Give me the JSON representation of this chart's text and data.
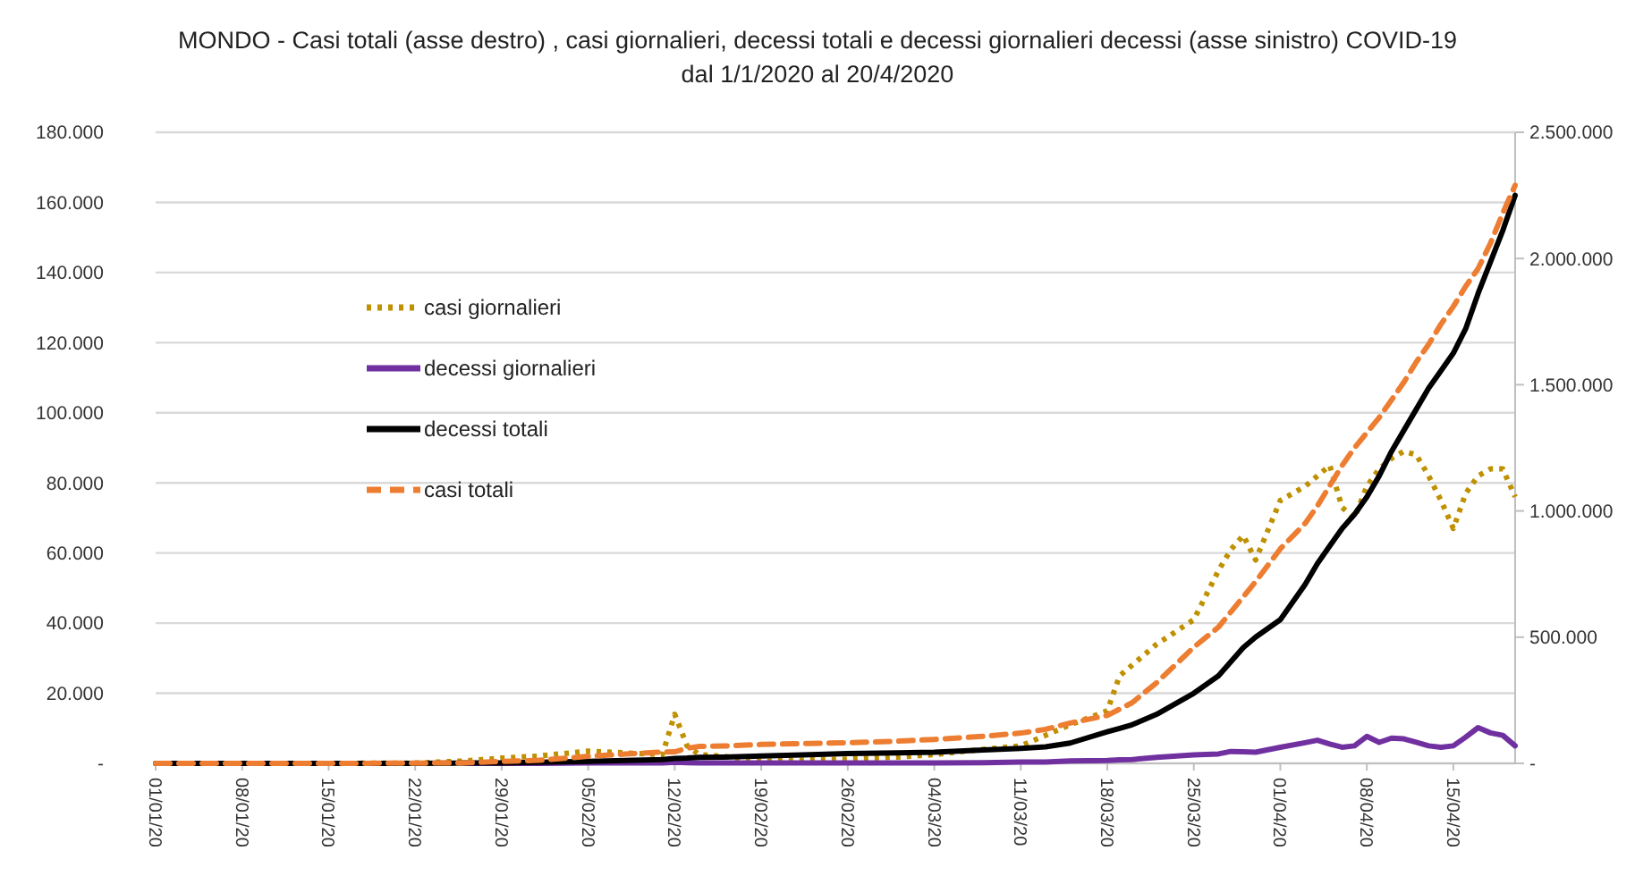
{
  "chart_data": {
    "type": "line",
    "title": "MONDO - Casi totali (asse destro) , casi giornalieri, decessi totali e decessi giornalieri decessi (asse sinistro) COVID-19",
    "subtitle": "dal 1/1/2020 al 20/4/2020",
    "x": [
      "2020-01-01",
      "2020-01-08",
      "2020-01-15",
      "2020-01-22",
      "2020-01-26",
      "2020-01-29",
      "2020-02-01",
      "2020-02-05",
      "2020-02-08",
      "2020-02-11",
      "2020-02-12",
      "2020-02-13",
      "2020-02-14",
      "2020-02-16",
      "2020-02-19",
      "2020-02-23",
      "2020-02-26",
      "2020-03-01",
      "2020-03-04",
      "2020-03-08",
      "2020-03-11",
      "2020-03-13",
      "2020-03-15",
      "2020-03-18",
      "2020-03-19",
      "2020-03-20",
      "2020-03-22",
      "2020-03-25",
      "2020-03-27",
      "2020-03-28",
      "2020-03-29",
      "2020-03-30",
      "2020-04-01",
      "2020-04-03",
      "2020-04-04",
      "2020-04-05",
      "2020-04-06",
      "2020-04-07",
      "2020-04-08",
      "2020-04-09",
      "2020-04-10",
      "2020-04-11",
      "2020-04-12",
      "2020-04-13",
      "2020-04-14",
      "2020-04-15",
      "2020-04-16",
      "2020-04-17",
      "2020-04-18",
      "2020-04-19",
      "2020-04-20"
    ],
    "series": [
      {
        "name": "casi giornalieri",
        "color": "#bf9000",
        "line_style": "dotted",
        "values": [
          null,
          null,
          0,
          100,
          700,
          1500,
          2100,
          3500,
          3000,
          2500,
          14000,
          5000,
          2500,
          2000,
          600,
          1000,
          1200,
          1800,
          2500,
          4000,
          5000,
          8000,
          11000,
          15000,
          25000,
          28000,
          34000,
          41000,
          55000,
          61000,
          65000,
          58000,
          75000,
          79000,
          82000,
          85000,
          73000,
          70000,
          79000,
          84000,
          87000,
          89000,
          88000,
          82000,
          75000,
          67000,
          77000,
          82000,
          84000,
          84000,
          76000
        ]
      },
      {
        "name": "decessi giornalieri",
        "color": "#7030a0",
        "line_style": "solid",
        "values": [
          null,
          null,
          null,
          null,
          0,
          0,
          0,
          100,
          100,
          100,
          300,
          200,
          100,
          100,
          100,
          100,
          100,
          100,
          100,
          200,
          400,
          400,
          700,
          800,
          1000,
          1100,
          1700,
          2400,
          2700,
          3400,
          3300,
          3200,
          4600,
          5900,
          6600,
          5500,
          4600,
          5000,
          7700,
          6000,
          7200,
          7000,
          6000,
          5000,
          4600,
          5000,
          7500,
          10200,
          8700,
          8000,
          5000
        ]
      },
      {
        "name": "decessi totali",
        "color": "#000000",
        "line_style": "solid",
        "values": [
          0,
          0,
          0,
          0,
          100,
          100,
          300,
          600,
          800,
          1100,
          1400,
          1500,
          1700,
          1800,
          2100,
          2500,
          2800,
          3000,
          3200,
          3800,
          4300,
          4700,
          5800,
          9000,
          10000,
          11000,
          14000,
          20000,
          25000,
          29000,
          33000,
          36000,
          41000,
          51000,
          57000,
          62000,
          67000,
          71000,
          76000,
          82000,
          89000,
          95000,
          101000,
          107000,
          112000,
          117000,
          124000,
          134000,
          143000,
          152000,
          162000
        ]
      },
      {
        "name": "casi totali",
        "color": "#ed7d31",
        "line_style": "dashed",
        "axis": "y2",
        "values": [
          0,
          0,
          0,
          1000,
          2000,
          8000,
          12000,
          28000,
          37000,
          45000,
          46000,
          60000,
          67000,
          69000,
          75000,
          79000,
          82000,
          88000,
          95000,
          107000,
          120000,
          135000,
          160000,
          190000,
          215000,
          240000,
          320000,
          460000,
          540000,
          600000,
          660000,
          720000,
          850000,
          950000,
          1020000,
          1100000,
          1180000,
          1250000,
          1310000,
          1370000,
          1440000,
          1510000,
          1590000,
          1660000,
          1740000,
          1810000,
          1890000,
          1960000,
          2060000,
          2180000,
          2290000
        ]
      }
    ],
    "xlim": [
      "2020-01-01",
      "2020-04-20"
    ],
    "xticks": [
      {
        "value": "2020-01-01",
        "label": "01/01/20"
      },
      {
        "value": "2020-01-08",
        "label": "08/01/20"
      },
      {
        "value": "2020-01-15",
        "label": "15/01/20"
      },
      {
        "value": "2020-01-22",
        "label": "22/01/20"
      },
      {
        "value": "2020-01-29",
        "label": "29/01/20"
      },
      {
        "value": "2020-02-05",
        "label": "05/02/20"
      },
      {
        "value": "2020-02-12",
        "label": "12/02/20"
      },
      {
        "value": "2020-02-19",
        "label": "19/02/20"
      },
      {
        "value": "2020-02-26",
        "label": "26/02/20"
      },
      {
        "value": "2020-03-04",
        "label": "04/03/20"
      },
      {
        "value": "2020-03-11",
        "label": "11/03/20"
      },
      {
        "value": "2020-03-18",
        "label": "18/03/20"
      },
      {
        "value": "2020-03-25",
        "label": "25/03/20"
      },
      {
        "value": "2020-04-01",
        "label": "01/04/20"
      },
      {
        "value": "2020-04-08",
        "label": "08/04/20"
      },
      {
        "value": "2020-04-15",
        "label": "15/04/20"
      }
    ],
    "ylim": [
      0,
      180000
    ],
    "yticks": [
      {
        "value": 0,
        "label": "-"
      },
      {
        "value": 20000,
        "label": "20.000"
      },
      {
        "value": 40000,
        "label": "40.000"
      },
      {
        "value": 60000,
        "label": "60.000"
      },
      {
        "value": 80000,
        "label": "80.000"
      },
      {
        "value": 100000,
        "label": "100.000"
      },
      {
        "value": 120000,
        "label": "120.000"
      },
      {
        "value": 140000,
        "label": "140.000"
      },
      {
        "value": 160000,
        "label": "160.000"
      },
      {
        "value": 180000,
        "label": "180.000"
      }
    ],
    "y2lim": [
      0,
      2500000
    ],
    "y2ticks": [
      {
        "value": 0,
        "label": "-"
      },
      {
        "value": 500000,
        "label": "500.000"
      },
      {
        "value": 1000000,
        "label": "1.000.000"
      },
      {
        "value": 1500000,
        "label": "1.500.000"
      },
      {
        "value": 2000000,
        "label": "2.000.000"
      },
      {
        "value": 2500000,
        "label": "2.500.000"
      }
    ],
    "grid": "y",
    "legend": "left"
  }
}
